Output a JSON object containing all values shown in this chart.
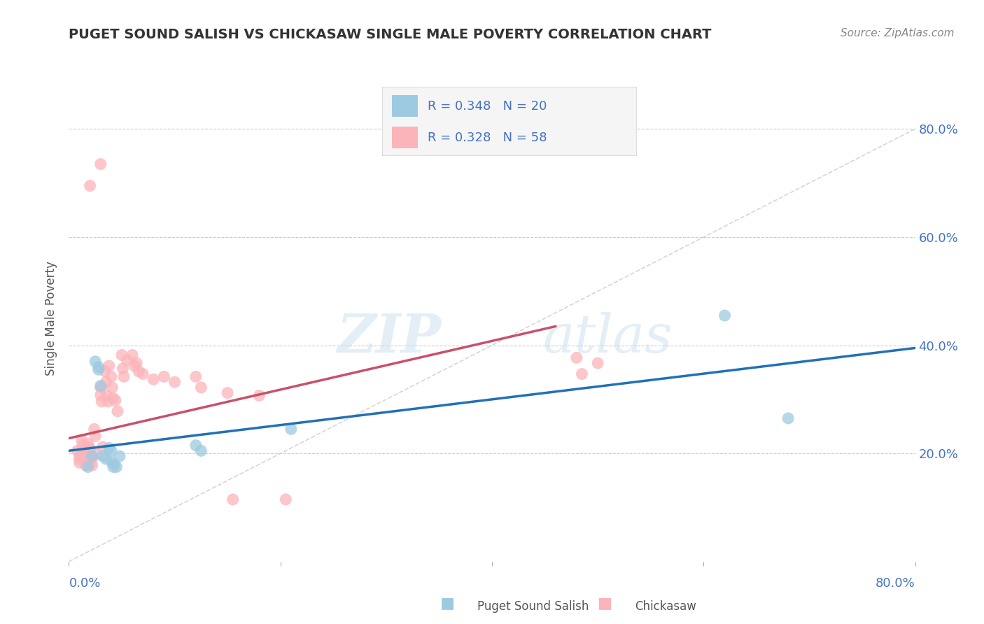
{
  "title": "PUGET SOUND SALISH VS CHICKASAW SINGLE MALE POVERTY CORRELATION CHART",
  "source_text": "Source: ZipAtlas.com",
  "ylabel": "Single Male Poverty",
  "watermark_zip": "ZIP",
  "watermark_atlas": "atlas",
  "legend_1_r": "R = 0.348",
  "legend_1_n": "N = 20",
  "legend_2_r": "R = 0.328",
  "legend_2_n": "N = 58",
  "xlim": [
    0.0,
    0.8
  ],
  "ylim": [
    0.0,
    0.9
  ],
  "yticks": [
    0.2,
    0.4,
    0.6,
    0.8
  ],
  "ytick_labels": [
    "20.0%",
    "40.0%",
    "60.0%",
    "80.0%"
  ],
  "xticks": [
    0.0,
    0.2,
    0.4,
    0.6,
    0.8
  ],
  "xtick_labels_bottom": [
    "0.0%",
    "",
    "",
    "",
    "80.0%"
  ],
  "grid_color": "#cccccc",
  "color_blue": "#9ecae1",
  "color_pink": "#fbb4b9",
  "line_blue": "#2171b5",
  "line_pink": "#c9516a",
  "diag_color": "#cccccc",
  "text_color": "#4472c4",
  "title_color": "#333333",
  "source_color": "#888888",
  "ylabel_color": "#555555",
  "blue_scatter": [
    [
      0.018,
      0.175
    ],
    [
      0.022,
      0.195
    ],
    [
      0.025,
      0.37
    ],
    [
      0.028,
      0.36
    ],
    [
      0.028,
      0.355
    ],
    [
      0.03,
      0.325
    ],
    [
      0.032,
      0.195
    ],
    [
      0.035,
      0.19
    ],
    [
      0.038,
      0.21
    ],
    [
      0.04,
      0.205
    ],
    [
      0.04,
      0.185
    ],
    [
      0.042,
      0.175
    ],
    [
      0.043,
      0.18
    ],
    [
      0.045,
      0.175
    ],
    [
      0.048,
      0.195
    ],
    [
      0.12,
      0.215
    ],
    [
      0.125,
      0.205
    ],
    [
      0.21,
      0.245
    ],
    [
      0.62,
      0.455
    ],
    [
      0.68,
      0.265
    ]
  ],
  "pink_scatter": [
    [
      0.008,
      0.205
    ],
    [
      0.01,
      0.195
    ],
    [
      0.01,
      0.19
    ],
    [
      0.01,
      0.183
    ],
    [
      0.012,
      0.225
    ],
    [
      0.013,
      0.215
    ],
    [
      0.014,
      0.205
    ],
    [
      0.015,
      0.2
    ],
    [
      0.015,
      0.193
    ],
    [
      0.016,
      0.185
    ],
    [
      0.016,
      0.178
    ],
    [
      0.018,
      0.218
    ],
    [
      0.019,
      0.212
    ],
    [
      0.02,
      0.207
    ],
    [
      0.02,
      0.2
    ],
    [
      0.021,
      0.195
    ],
    [
      0.021,
      0.185
    ],
    [
      0.022,
      0.178
    ],
    [
      0.024,
      0.245
    ],
    [
      0.025,
      0.232
    ],
    [
      0.026,
      0.198
    ],
    [
      0.03,
      0.322
    ],
    [
      0.03,
      0.308
    ],
    [
      0.031,
      0.296
    ],
    [
      0.032,
      0.212
    ],
    [
      0.034,
      0.352
    ],
    [
      0.035,
      0.332
    ],
    [
      0.036,
      0.307
    ],
    [
      0.037,
      0.296
    ],
    [
      0.038,
      0.362
    ],
    [
      0.04,
      0.342
    ],
    [
      0.041,
      0.322
    ],
    [
      0.042,
      0.302
    ],
    [
      0.044,
      0.298
    ],
    [
      0.046,
      0.278
    ],
    [
      0.05,
      0.382
    ],
    [
      0.051,
      0.357
    ],
    [
      0.052,
      0.342
    ],
    [
      0.055,
      0.372
    ],
    [
      0.06,
      0.382
    ],
    [
      0.062,
      0.362
    ],
    [
      0.064,
      0.367
    ],
    [
      0.066,
      0.352
    ],
    [
      0.07,
      0.347
    ],
    [
      0.08,
      0.337
    ],
    [
      0.09,
      0.342
    ],
    [
      0.1,
      0.332
    ],
    [
      0.12,
      0.342
    ],
    [
      0.125,
      0.322
    ],
    [
      0.15,
      0.312
    ],
    [
      0.18,
      0.307
    ],
    [
      0.02,
      0.695
    ],
    [
      0.03,
      0.735
    ],
    [
      0.155,
      0.115
    ],
    [
      0.205,
      0.115
    ],
    [
      0.48,
      0.377
    ],
    [
      0.5,
      0.367
    ],
    [
      0.485,
      0.347
    ]
  ],
  "blue_line_x": [
    0.0,
    0.8
  ],
  "blue_line_y": [
    0.205,
    0.395
  ],
  "pink_line_x": [
    0.0,
    0.46
  ],
  "pink_line_y": [
    0.228,
    0.435
  ],
  "diag_line_x": [
    0.0,
    0.8
  ],
  "diag_line_y": [
    0.0,
    0.8
  ],
  "legend_bbox_color": "#f5f5f5",
  "legend_edge_color": "#dddddd",
  "bottom_legend_label1": "Puget Sound Salish",
  "bottom_legend_label2": "Chickasaw",
  "bottom_text_color": "#555555"
}
